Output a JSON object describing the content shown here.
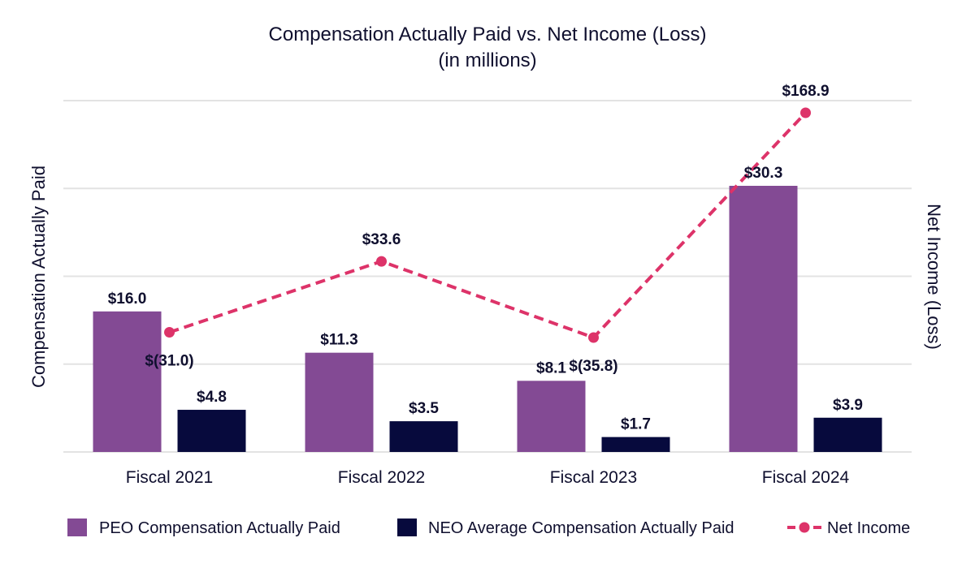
{
  "chart_data": {
    "type": "bar",
    "title": "Compensation Actually Paid vs. Net Income (Loss)",
    "subtitle": "(in millions)",
    "categories": [
      "Fiscal 2021",
      "Fiscal 2022",
      "Fiscal 2023",
      "Fiscal 2024"
    ],
    "ylabel": "Compensation Actually Paid",
    "y2label": "Net Income (Loss)",
    "ylim": [
      0,
      40
    ],
    "y2lim": [
      -140,
      180
    ],
    "grid": true,
    "legend_position": "bottom",
    "series": [
      {
        "name": "PEO Compensation Actually Paid",
        "type": "bar",
        "axis": "left",
        "color": "#834a94",
        "values": [
          16.0,
          11.3,
          8.1,
          30.3
        ],
        "labels": [
          "$16.0",
          "$11.3",
          "$8.1",
          "$30.3"
        ]
      },
      {
        "name": "NEO Average Compensation Actually Paid",
        "type": "bar",
        "axis": "left",
        "color": "#070a3d",
        "values": [
          4.8,
          3.5,
          1.7,
          3.9
        ],
        "labels": [
          "$4.8",
          "$3.5",
          "$1.7",
          "$3.9"
        ]
      },
      {
        "name": "Net Income",
        "type": "line",
        "style": "dashed",
        "axis": "right",
        "color": "#dd3369",
        "values": [
          -31.0,
          33.6,
          -35.8,
          168.9
        ],
        "labels": [
          "$(31.0)",
          "$33.6",
          "$(35.8)",
          "$168.9"
        ]
      }
    ]
  }
}
